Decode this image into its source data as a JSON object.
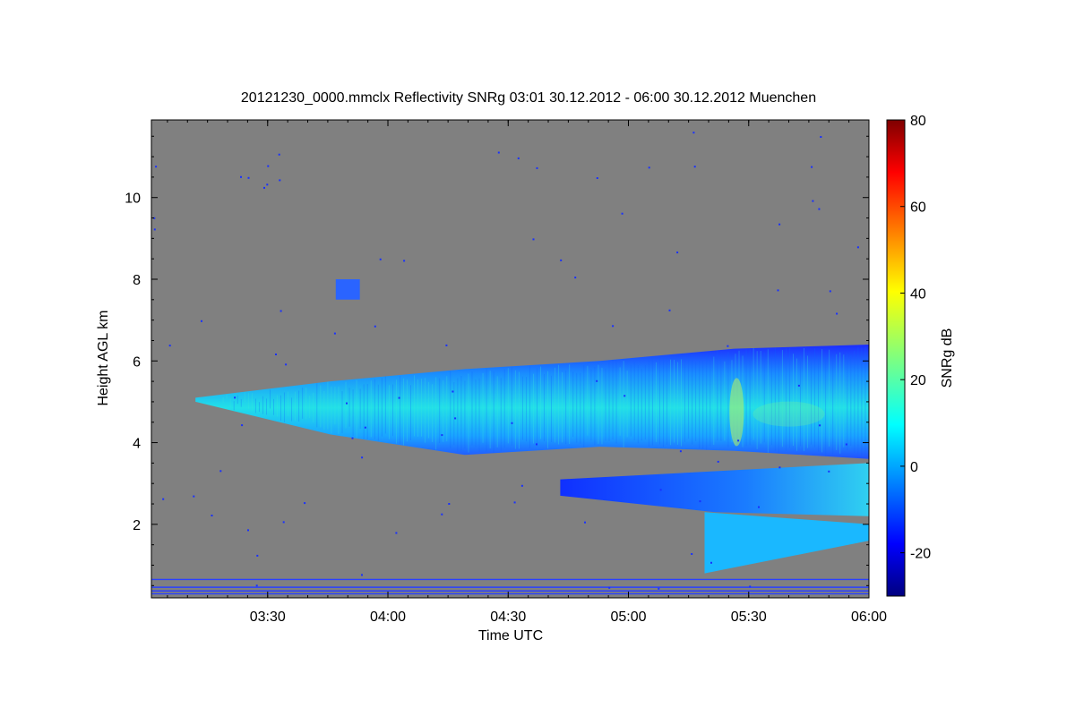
{
  "chart_data": {
    "type": "heatmap",
    "title": "20121230_0000.mmclx Reflectivity SNRg   03:01 30.12.2012 - 06:00 30.12.2012 Muenchen",
    "xlabel": "Time UTC",
    "ylabel": "Height AGL km",
    "x_ticks": [
      "03:30",
      "04:00",
      "04:30",
      "05:00",
      "05:30",
      "06:00"
    ],
    "x_tick_values": [
      210,
      240,
      270,
      300,
      330,
      360
    ],
    "xlim": [
      181,
      360
    ],
    "y_ticks": [
      "2",
      "4",
      "6",
      "8",
      "10"
    ],
    "y_tick_values": [
      2,
      4,
      6,
      8,
      10
    ],
    "ylim": [
      0.2,
      11.9
    ],
    "colorbar": {
      "label": "SNRg dB",
      "range": [
        -30,
        80
      ],
      "ticks": [
        "-20",
        "0",
        "20",
        "40",
        "60",
        "80"
      ],
      "tick_values": [
        -20,
        0,
        20,
        40,
        60,
        80
      ],
      "colormap": "jet"
    },
    "background_color": "#808080",
    "echo_regions": [
      {
        "name": "main cloud layer",
        "t_start": 192,
        "t_end": 360,
        "base_km": [
          5.0,
          4.2,
          3.7,
          3.9,
          3.8,
          3.6
        ],
        "top_km": [
          5.1,
          5.5,
          5.8,
          6.0,
          6.3,
          6.4
        ],
        "snr_db": [
          -5,
          10
        ]
      },
      {
        "name": "lower layer",
        "t_start": 283,
        "t_end": 360,
        "base_km": [
          2.7,
          2.3,
          2.2
        ],
        "top_km": [
          3.1,
          3.3,
          3.5
        ],
        "snr_db": [
          -10,
          5
        ]
      },
      {
        "name": "fall streak",
        "t_start": 319,
        "t_end": 360,
        "base_km": [
          0.8,
          1.6
        ],
        "top_km": [
          2.3,
          2.0
        ],
        "snr_db": [
          -5,
          10
        ]
      },
      {
        "name": "isolated echo",
        "t_start": 227,
        "t_end": 233,
        "base_km": [
          7.5
        ],
        "top_km": [
          8.0
        ],
        "snr_db": [
          -10,
          0
        ]
      }
    ],
    "grid": false
  }
}
